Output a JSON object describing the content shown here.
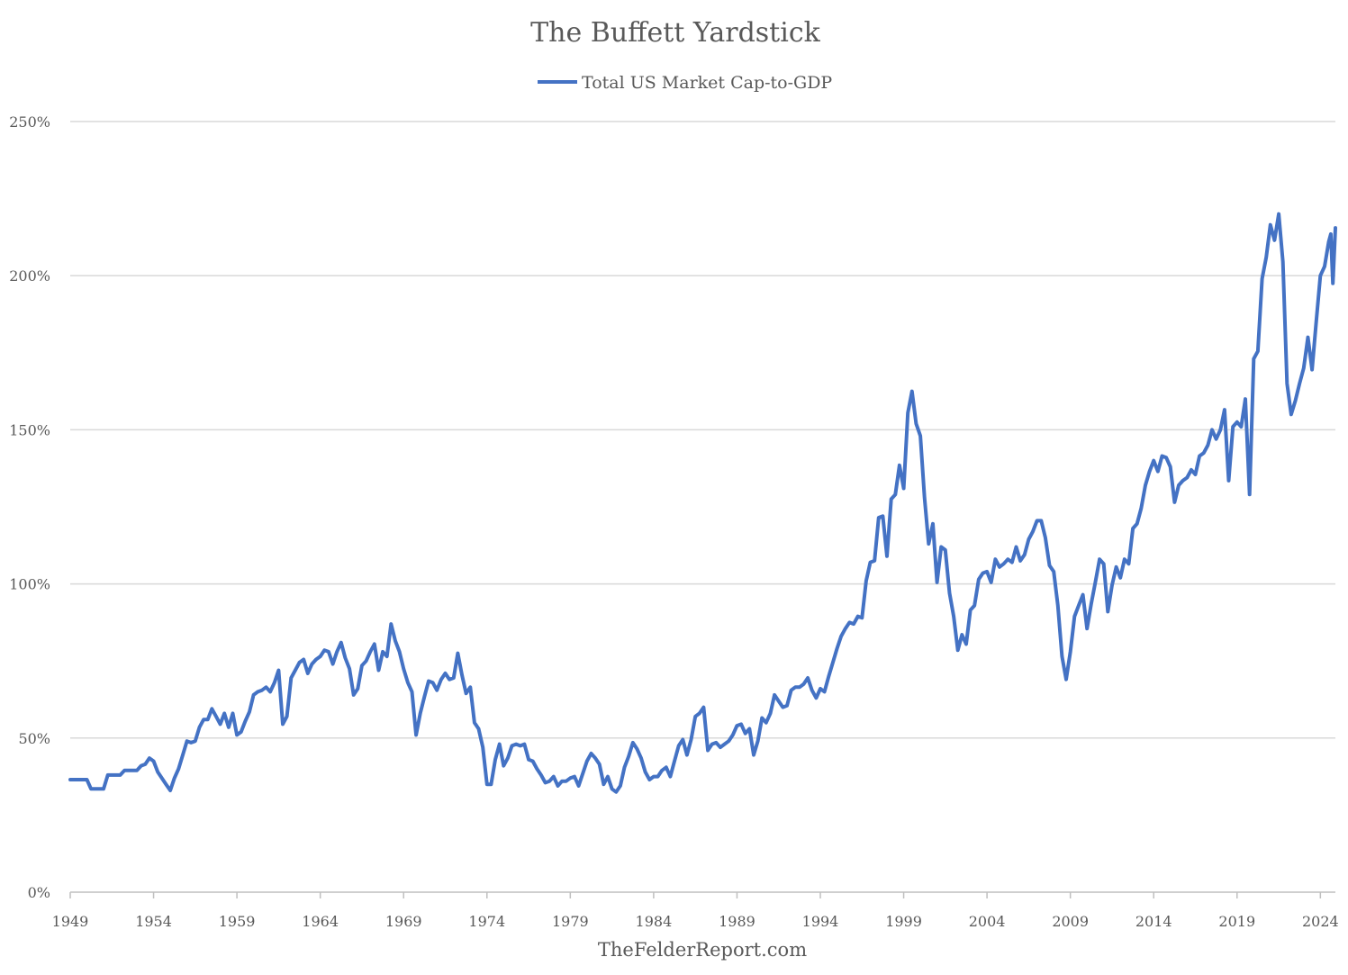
{
  "chart_data": {
    "type": "line",
    "title": "The Buffett Yardstick",
    "source": "TheFelderReport.com",
    "xlabel": "",
    "ylabel": "",
    "xlim": [
      1949,
      2024.9
    ],
    "ylim": [
      0,
      250
    ],
    "x_ticks": [
      1949,
      1954,
      1959,
      1964,
      1969,
      1974,
      1979,
      1984,
      1989,
      1994,
      1999,
      2004,
      2009,
      2014,
      2019,
      2024
    ],
    "x_tick_labels": [
      "1949",
      "1954",
      "1959",
      "1964",
      "1969",
      "1974",
      "1979",
      "1984",
      "1989",
      "1994",
      "1999",
      "2004",
      "2009",
      "2014",
      "2019",
      "2024"
    ],
    "y_ticks": [
      0,
      50,
      100,
      150,
      200,
      250
    ],
    "y_tick_labels": [
      "0%",
      "50%",
      "100%",
      "150%",
      "200%",
      "250%"
    ],
    "grid": true,
    "legend_position": "top-center",
    "series": [
      {
        "name": "Total US Market Cap-to-GDP",
        "color": "#4472C4",
        "points": [
          [
            1949.0,
            36.5
          ],
          [
            1949.5,
            36.5
          ],
          [
            1950.0,
            36.5
          ],
          [
            1950.25,
            33.5
          ],
          [
            1950.75,
            33.5
          ],
          [
            1951.0,
            33.5
          ],
          [
            1951.25,
            38.0
          ],
          [
            1951.75,
            38.0
          ],
          [
            1952.0,
            38.0
          ],
          [
            1952.25,
            39.5
          ],
          [
            1952.75,
            39.5
          ],
          [
            1953.0,
            39.5
          ],
          [
            1953.25,
            41.0
          ],
          [
            1953.5,
            41.5
          ],
          [
            1953.75,
            43.5
          ],
          [
            1954.0,
            42.5
          ],
          [
            1954.25,
            39.0
          ],
          [
            1954.75,
            35.0
          ],
          [
            1955.0,
            33.0
          ],
          [
            1955.25,
            37.0
          ],
          [
            1955.5,
            40.0
          ],
          [
            1955.75,
            44.5
          ],
          [
            1956.0,
            49.0
          ],
          [
            1956.25,
            48.5
          ],
          [
            1956.5,
            49.0
          ],
          [
            1956.75,
            53.5
          ],
          [
            1957.0,
            56.0
          ],
          [
            1957.25,
            56.0
          ],
          [
            1957.5,
            59.5
          ],
          [
            1957.75,
            57.0
          ],
          [
            1958.0,
            54.5
          ],
          [
            1958.25,
            58.0
          ],
          [
            1958.5,
            53.5
          ],
          [
            1958.75,
            58.0
          ],
          [
            1959.0,
            51.0
          ],
          [
            1959.25,
            52.0
          ],
          [
            1959.5,
            55.5
          ],
          [
            1959.75,
            58.5
          ],
          [
            1960.0,
            64.0
          ],
          [
            1960.25,
            65.0
          ],
          [
            1960.5,
            65.5
          ],
          [
            1960.75,
            66.5
          ],
          [
            1961.0,
            65.0
          ],
          [
            1961.25,
            68.0
          ],
          [
            1961.5,
            72.0
          ],
          [
            1961.75,
            54.5
          ],
          [
            1962.0,
            57.0
          ],
          [
            1962.25,
            69.5
          ],
          [
            1962.5,
            72.0
          ],
          [
            1962.75,
            74.5
          ],
          [
            1963.0,
            75.5
          ],
          [
            1963.25,
            71.0
          ],
          [
            1963.5,
            74.0
          ],
          [
            1963.75,
            75.5
          ],
          [
            1964.0,
            76.5
          ],
          [
            1964.25,
            78.5
          ],
          [
            1964.5,
            78.0
          ],
          [
            1964.75,
            74.0
          ],
          [
            1965.0,
            78.0
          ],
          [
            1965.25,
            81.0
          ],
          [
            1965.5,
            76.0
          ],
          [
            1965.75,
            72.5
          ],
          [
            1966.0,
            64.0
          ],
          [
            1966.25,
            66.0
          ],
          [
            1966.5,
            73.5
          ],
          [
            1966.75,
            75.0
          ],
          [
            1967.0,
            78.0
          ],
          [
            1967.25,
            80.5
          ],
          [
            1967.5,
            72.0
          ],
          [
            1967.75,
            78.0
          ],
          [
            1968.0,
            76.5
          ],
          [
            1968.25,
            87.0
          ],
          [
            1968.5,
            81.5
          ],
          [
            1968.75,
            78.0
          ],
          [
            1969.0,
            72.5
          ],
          [
            1969.25,
            68.0
          ],
          [
            1969.5,
            65.0
          ],
          [
            1969.75,
            51.0
          ],
          [
            1970.0,
            58.0
          ],
          [
            1970.25,
            63.5
          ],
          [
            1970.5,
            68.5
          ],
          [
            1970.75,
            68.0
          ],
          [
            1971.0,
            65.5
          ],
          [
            1971.25,
            69.0
          ],
          [
            1971.5,
            71.0
          ],
          [
            1971.75,
            69.0
          ],
          [
            1972.0,
            69.5
          ],
          [
            1972.25,
            77.5
          ],
          [
            1972.5,
            70.5
          ],
          [
            1972.75,
            64.5
          ],
          [
            1973.0,
            66.5
          ],
          [
            1973.25,
            55.0
          ],
          [
            1973.5,
            53.0
          ],
          [
            1973.75,
            47.0
          ],
          [
            1974.0,
            35.0
          ],
          [
            1974.25,
            35.0
          ],
          [
            1974.5,
            43.0
          ],
          [
            1974.75,
            48.0
          ],
          [
            1975.0,
            41.0
          ],
          [
            1975.25,
            43.5
          ],
          [
            1975.5,
            47.5
          ],
          [
            1975.75,
            48.0
          ],
          [
            1976.0,
            47.5
          ],
          [
            1976.25,
            48.0
          ],
          [
            1976.5,
            43.0
          ],
          [
            1976.75,
            42.5
          ],
          [
            1977.0,
            40.0
          ],
          [
            1977.25,
            38.0
          ],
          [
            1977.5,
            35.5
          ],
          [
            1977.75,
            36.0
          ],
          [
            1978.0,
            37.5
          ],
          [
            1978.25,
            34.5
          ],
          [
            1978.5,
            36.0
          ],
          [
            1978.75,
            36.0
          ],
          [
            1979.0,
            37.0
          ],
          [
            1979.25,
            37.5
          ],
          [
            1979.5,
            34.5
          ],
          [
            1979.75,
            38.5
          ],
          [
            1980.0,
            42.5
          ],
          [
            1980.25,
            45.0
          ],
          [
            1980.5,
            43.5
          ],
          [
            1980.75,
            41.5
          ],
          [
            1981.0,
            35.0
          ],
          [
            1981.25,
            37.5
          ],
          [
            1981.5,
            33.5
          ],
          [
            1981.75,
            32.5
          ],
          [
            1982.0,
            34.5
          ],
          [
            1982.25,
            40.5
          ],
          [
            1982.5,
            44.0
          ],
          [
            1982.75,
            48.5
          ],
          [
            1983.0,
            46.5
          ],
          [
            1983.25,
            43.5
          ],
          [
            1983.5,
            39.0
          ],
          [
            1983.75,
            36.5
          ],
          [
            1984.0,
            37.5
          ],
          [
            1984.25,
            37.5
          ],
          [
            1984.5,
            39.5
          ],
          [
            1984.75,
            40.5
          ],
          [
            1985.0,
            37.5
          ],
          [
            1985.25,
            42.5
          ],
          [
            1985.5,
            47.5
          ],
          [
            1985.75,
            49.5
          ],
          [
            1986.0,
            44.5
          ],
          [
            1986.25,
            49.5
          ],
          [
            1986.5,
            57.0
          ],
          [
            1986.75,
            58.0
          ],
          [
            1987.0,
            60.0
          ],
          [
            1987.25,
            46.0
          ],
          [
            1987.5,
            48.0
          ],
          [
            1987.75,
            48.5
          ],
          [
            1988.0,
            47.0
          ],
          [
            1988.25,
            48.0
          ],
          [
            1988.5,
            49.0
          ],
          [
            1988.75,
            51.0
          ],
          [
            1989.0,
            54.0
          ],
          [
            1989.25,
            54.5
          ],
          [
            1989.5,
            51.5
          ],
          [
            1989.75,
            53.0
          ],
          [
            1990.0,
            44.5
          ],
          [
            1990.25,
            49.0
          ],
          [
            1990.5,
            56.5
          ],
          [
            1990.75,
            55.0
          ],
          [
            1991.0,
            58.0
          ],
          [
            1991.25,
            64.0
          ],
          [
            1991.5,
            62.0
          ],
          [
            1991.75,
            60.0
          ],
          [
            1992.0,
            60.5
          ],
          [
            1992.25,
            65.5
          ],
          [
            1992.5,
            66.5
          ],
          [
            1992.75,
            66.5
          ],
          [
            1993.0,
            67.5
          ],
          [
            1993.25,
            69.5
          ],
          [
            1993.5,
            65.5
          ],
          [
            1993.75,
            63.0
          ],
          [
            1994.0,
            66.0
          ],
          [
            1994.25,
            65.0
          ],
          [
            1994.5,
            70.0
          ],
          [
            1994.75,
            74.5
          ],
          [
            1995.0,
            79.0
          ],
          [
            1995.25,
            83.0
          ],
          [
            1995.5,
            85.5
          ],
          [
            1995.75,
            87.5
          ],
          [
            1996.0,
            87.0
          ],
          [
            1996.25,
            89.5
          ],
          [
            1996.5,
            89.0
          ],
          [
            1996.75,
            101.0
          ],
          [
            1997.0,
            107.0
          ],
          [
            1997.25,
            107.5
          ],
          [
            1997.5,
            121.5
          ],
          [
            1997.75,
            122.0
          ],
          [
            1998.0,
            109.0
          ],
          [
            1998.25,
            127.5
          ],
          [
            1998.5,
            129.0
          ],
          [
            1998.75,
            138.5
          ],
          [
            1999.0,
            131.0
          ],
          [
            1999.25,
            155.5
          ],
          [
            1999.5,
            162.5
          ],
          [
            1999.75,
            152.0
          ],
          [
            2000.0,
            148.0
          ],
          [
            2000.25,
            128.0
          ],
          [
            2000.5,
            113.0
          ],
          [
            2000.75,
            119.5
          ],
          [
            2001.0,
            100.5
          ],
          [
            2001.25,
            112.0
          ],
          [
            2001.5,
            111.0
          ],
          [
            2001.75,
            97.0
          ],
          [
            2002.0,
            89.5
          ],
          [
            2002.25,
            78.5
          ],
          [
            2002.5,
            83.5
          ],
          [
            2002.75,
            80.5
          ],
          [
            2003.0,
            91.5
          ],
          [
            2003.25,
            93.0
          ],
          [
            2003.5,
            101.5
          ],
          [
            2003.75,
            103.5
          ],
          [
            2004.0,
            104.0
          ],
          [
            2004.25,
            100.5
          ],
          [
            2004.5,
            108.0
          ],
          [
            2004.75,
            105.5
          ],
          [
            2005.0,
            106.5
          ],
          [
            2005.25,
            108.0
          ],
          [
            2005.5,
            107.0
          ],
          [
            2005.75,
            112.0
          ],
          [
            2006.0,
            107.5
          ],
          [
            2006.25,
            109.5
          ],
          [
            2006.5,
            114.5
          ],
          [
            2006.75,
            117.0
          ],
          [
            2007.0,
            120.5
          ],
          [
            2007.25,
            120.5
          ],
          [
            2007.5,
            115.0
          ],
          [
            2007.75,
            106.0
          ],
          [
            2008.0,
            104.0
          ],
          [
            2008.25,
            93.0
          ],
          [
            2008.5,
            76.5
          ],
          [
            2008.75,
            69.0
          ],
          [
            2009.0,
            78.0
          ],
          [
            2009.25,
            89.5
          ],
          [
            2009.5,
            93.0
          ],
          [
            2009.75,
            96.5
          ],
          [
            2010.0,
            85.5
          ],
          [
            2010.25,
            93.5
          ],
          [
            2010.5,
            100.5
          ],
          [
            2010.75,
            108.0
          ],
          [
            2011.0,
            106.5
          ],
          [
            2011.25,
            91.0
          ],
          [
            2011.5,
            99.5
          ],
          [
            2011.75,
            105.5
          ],
          [
            2012.0,
            102.0
          ],
          [
            2012.25,
            108.0
          ],
          [
            2012.5,
            106.5
          ],
          [
            2012.75,
            118.0
          ],
          [
            2013.0,
            119.5
          ],
          [
            2013.25,
            124.5
          ],
          [
            2013.5,
            132.0
          ],
          [
            2013.75,
            136.5
          ],
          [
            2014.0,
            140.0
          ],
          [
            2014.25,
            136.5
          ],
          [
            2014.5,
            141.5
          ],
          [
            2014.75,
            141.0
          ],
          [
            2015.0,
            138.0
          ],
          [
            2015.25,
            126.5
          ],
          [
            2015.5,
            132.0
          ],
          [
            2015.75,
            133.5
          ],
          [
            2016.0,
            134.5
          ],
          [
            2016.25,
            137.0
          ],
          [
            2016.5,
            135.5
          ],
          [
            2016.75,
            141.5
          ],
          [
            2017.0,
            142.5
          ],
          [
            2017.25,
            145.0
          ],
          [
            2017.5,
            150.0
          ],
          [
            2017.75,
            147.0
          ],
          [
            2018.0,
            150.0
          ],
          [
            2018.25,
            156.5
          ],
          [
            2018.5,
            133.5
          ],
          [
            2018.75,
            151.0
          ],
          [
            2019.0,
            152.5
          ],
          [
            2019.25,
            151.0
          ],
          [
            2019.5,
            160.0
          ],
          [
            2019.75,
            129.0
          ],
          [
            2020.0,
            173.0
          ],
          [
            2020.25,
            175.5
          ],
          [
            2020.5,
            199.0
          ],
          [
            2020.75,
            206.0
          ],
          [
            2021.0,
            216.5
          ],
          [
            2021.25,
            211.5
          ],
          [
            2021.5,
            220.0
          ],
          [
            2021.75,
            204.5
          ],
          [
            2022.0,
            165.0
          ],
          [
            2022.25,
            155.0
          ],
          [
            2022.5,
            159.5
          ],
          [
            2022.75,
            165.0
          ],
          [
            2023.0,
            170.0
          ],
          [
            2023.25,
            180.0
          ],
          [
            2023.5,
            169.5
          ],
          [
            2023.75,
            185.0
          ],
          [
            2024.0,
            200.0
          ],
          [
            2024.25,
            203.0
          ],
          [
            2024.5,
            211.0
          ],
          [
            2024.625,
            213.5
          ],
          [
            2024.75,
            197.5
          ],
          [
            2024.9,
            215.5
          ]
        ]
      }
    ]
  }
}
